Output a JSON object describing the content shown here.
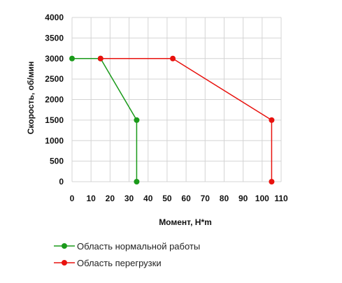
{
  "chart_data": {
    "type": "line",
    "xlabel": "Момент, Н*m",
    "ylabel": "Скорость, об/мин",
    "xlim": [
      0,
      110
    ],
    "ylim": [
      0,
      4000
    ],
    "x_ticks": [
      0,
      10,
      20,
      30,
      40,
      50,
      60,
      70,
      80,
      90,
      100,
      110
    ],
    "y_ticks": [
      0,
      500,
      1000,
      1500,
      2000,
      2500,
      3000,
      3500,
      4000
    ],
    "grid": true,
    "legend_position": "bottom-left",
    "series": [
      {
        "name": "Область нормальной работы",
        "color": "#1a9a1a",
        "points": [
          [
            34,
            0
          ],
          [
            34,
            1500
          ],
          [
            15,
            3000
          ],
          [
            0,
            3000
          ]
        ]
      },
      {
        "name": "Область перегрузки",
        "color": "#e8120e",
        "points": [
          [
            15,
            3000
          ],
          [
            53,
            3000
          ],
          [
            105,
            1500
          ],
          [
            105,
            0
          ]
        ]
      }
    ]
  }
}
